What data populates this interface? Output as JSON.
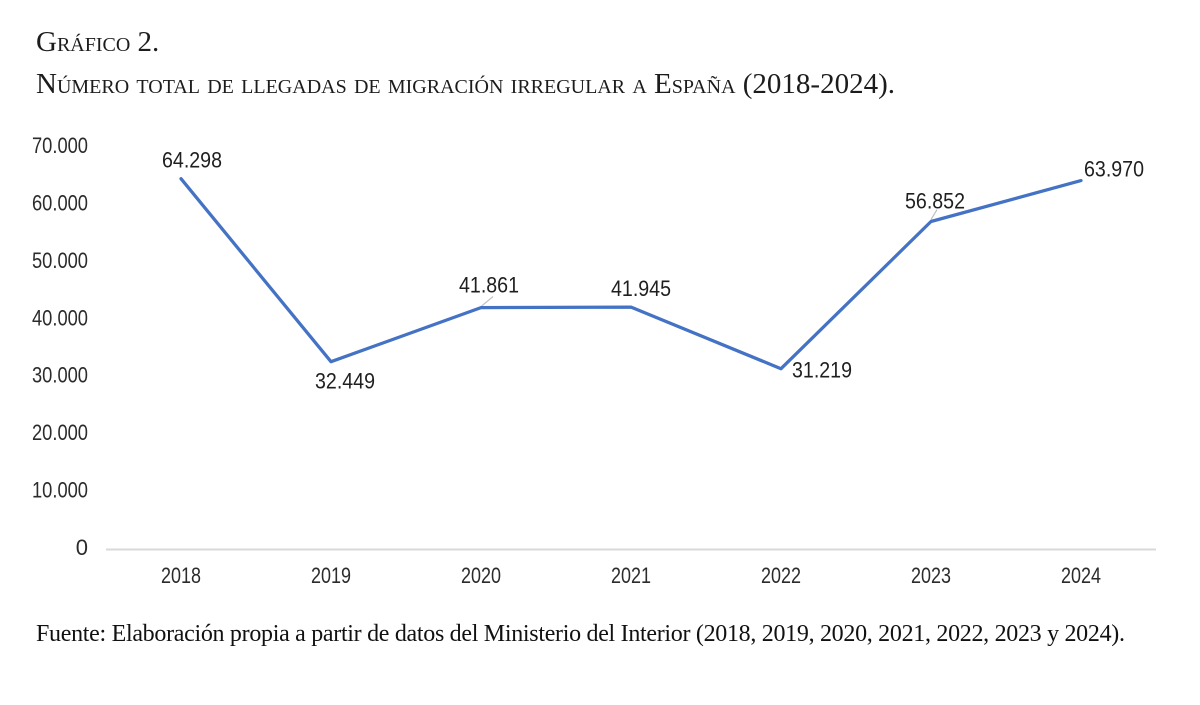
{
  "title": {
    "line1": "Gráfico 2.",
    "line2": "Número total de llegadas de migración irregular a España (2018-2024)."
  },
  "source": "Fuente: Elaboración propia a partir de datos del Ministerio del Interior (2018, 2019, 2020, 2021, 2022, 2023 y 2024).",
  "chart_data": {
    "type": "line",
    "title": "Número total de llegadas de migración irregular a España (2018-2024)",
    "categories": [
      "2018",
      "2019",
      "2020",
      "2021",
      "2022",
      "2023",
      "2024"
    ],
    "values": [
      64298,
      32449,
      41861,
      41945,
      31219,
      56852,
      63970
    ],
    "value_labels": [
      "64.298",
      "32.449",
      "41.861",
      "41.945",
      "31.219",
      "56.852",
      "63.970"
    ],
    "ytick_values": [
      0,
      10000,
      20000,
      30000,
      40000,
      50000,
      60000,
      70000
    ],
    "ytick_labels": [
      "0",
      "10.000",
      "20.000",
      "30.000",
      "40.000",
      "50.000",
      "60.000",
      "70.000"
    ],
    "ylim": [
      0,
      70000
    ],
    "xlabel": "",
    "ylabel": "",
    "grid": false,
    "legend": "none",
    "colors": {
      "line": "#4472C4",
      "axis_line": "#D9D9D9",
      "tick_label": "#2b2b2b",
      "data_label": "#1f1f1f",
      "leader_line": "#BFBFBF"
    }
  }
}
